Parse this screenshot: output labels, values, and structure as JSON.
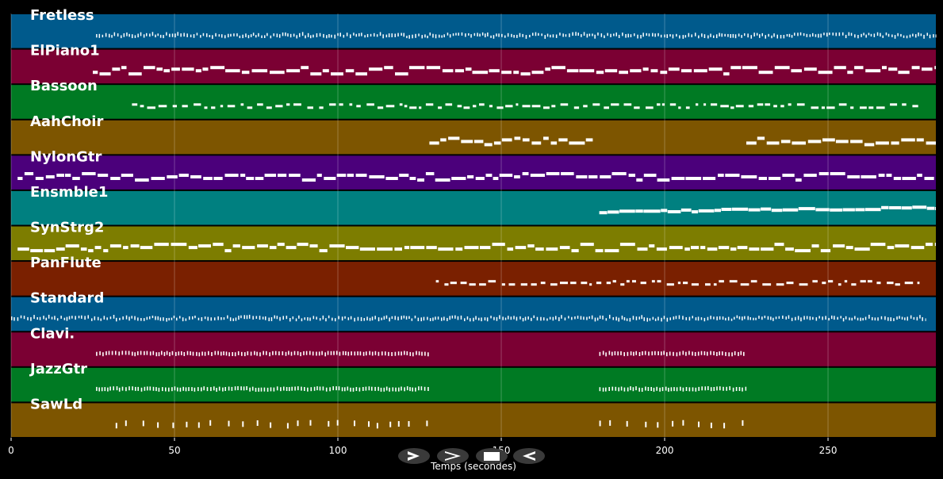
{
  "chart_data": {
    "type": "piano-roll",
    "title": "",
    "xlabel": "Temps (secondes)",
    "xlim": [
      0,
      283
    ],
    "xticks": [
      0,
      50,
      100,
      150,
      200,
      250
    ],
    "grid": true,
    "tracks": [
      {
        "name": "Fretless",
        "color": "#005a8c",
        "style": "dense-fine",
        "segments": [
          [
            26,
            283
          ]
        ]
      },
      {
        "name": "ElPiano1",
        "color": "#7b0033",
        "style": "blocks",
        "segments": [
          [
            25,
            283
          ]
        ]
      },
      {
        "name": "Bassoon",
        "color": "#007a23",
        "style": "dashes",
        "segments": [
          [
            37,
            278
          ]
        ]
      },
      {
        "name": "AahChoir",
        "color": "#7d5500",
        "style": "blocks",
        "segments": [
          [
            128,
            178
          ],
          [
            225,
            283
          ]
        ]
      },
      {
        "name": "NylonGtr",
        "color": "#4b007b",
        "style": "blocks",
        "segments": [
          [
            2,
            283
          ]
        ]
      },
      {
        "name": "Ensmble1",
        "color": "#008080",
        "style": "legato",
        "segments": [
          [
            180,
            283
          ]
        ]
      },
      {
        "name": "SynStrg2",
        "color": "#7d7d00",
        "style": "blocks",
        "segments": [
          [
            2,
            283
          ]
        ]
      },
      {
        "name": "PanFlute",
        "color": "#7a2000",
        "style": "dashes",
        "segments": [
          [
            130,
            278
          ]
        ]
      },
      {
        "name": "Standard",
        "color": "#005a8c",
        "style": "dense-fine",
        "segments": [
          [
            0,
            280
          ]
        ]
      },
      {
        "name": "Clavi.",
        "color": "#7b0033",
        "style": "fine-blocks",
        "segments": [
          [
            26,
            128
          ],
          [
            180,
            225
          ]
        ]
      },
      {
        "name": "JazzGtr",
        "color": "#007a23",
        "style": "fine-blocks",
        "segments": [
          [
            26,
            128
          ],
          [
            180,
            225
          ]
        ]
      },
      {
        "name": "SawLd",
        "color": "#7d5500",
        "style": "sparse",
        "segments": [
          [
            32,
            128
          ],
          [
            180,
            225
          ]
        ]
      }
    ]
  },
  "controls": [
    {
      "name": "play-icon",
      "glyph": "play"
    },
    {
      "name": "forward-icon",
      "glyph": "forward"
    },
    {
      "name": "stop-icon",
      "glyph": "stop"
    },
    {
      "name": "back-icon",
      "glyph": "back"
    }
  ]
}
